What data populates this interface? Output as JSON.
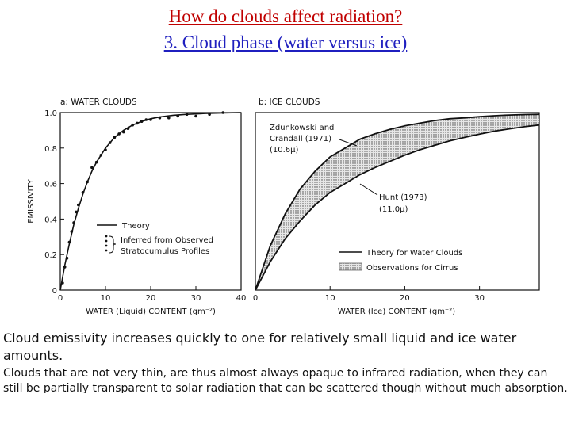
{
  "slide": {
    "title_line1": "How do clouds affect radiation?",
    "title_line2": "3. Cloud phase (water versus ice)",
    "summary": "Cloud emissivity increases quickly to one for relatively small liquid and ice water amounts.",
    "detail": "Clouds that are not very thin, are thus almost always opaque to infrared radiation, when they can still be partially transparent to solar radiation that can be scattered though without much absorption."
  },
  "colors": {
    "title_line1": "#c00000",
    "title_line2": "#1f1fbf",
    "ink": "#111111",
    "shade": "#9a9a9a"
  },
  "chart_data": [
    {
      "type": "line",
      "title": "a: WATER CLOUDS",
      "xlabel": "WATER (Liquid) CONTENT (gm⁻²)",
      "ylabel": "EMISSIVITY",
      "xlim": [
        0,
        40
      ],
      "ylim": [
        0,
        1.0
      ],
      "xticks": [
        "0",
        "10",
        "20",
        "30",
        "40"
      ],
      "yticks": [
        "0",
        "0.2",
        "0.4",
        "0.6",
        "0.8",
        "1.0"
      ],
      "legend": [
        {
          "style": "line",
          "label": "Theory"
        },
        {
          "style": "dots",
          "label": "Inferred from Observed"
        },
        {
          "style": "none",
          "label": "Stratocumulus Profiles"
        }
      ],
      "series": [
        {
          "style": "line",
          "x": [
            0,
            1,
            2,
            3,
            4,
            5,
            6,
            7,
            8,
            9,
            10,
            12,
            14,
            16,
            18,
            20,
            22,
            25,
            28,
            32,
            36,
            40
          ],
          "y": [
            0,
            0.14,
            0.26,
            0.37,
            0.46,
            0.54,
            0.61,
            0.67,
            0.72,
            0.76,
            0.8,
            0.86,
            0.9,
            0.93,
            0.95,
            0.965,
            0.975,
            0.985,
            0.99,
            0.995,
            0.998,
            1.0
          ]
        },
        {
          "style": "dots",
          "x": [
            0.5,
            1,
            1.5,
            2,
            2.5,
            3,
            3.5,
            4,
            5,
            6,
            7,
            8,
            9,
            10,
            11,
            12,
            13,
            14,
            15,
            16,
            17,
            18,
            19,
            20,
            22,
            24,
            26,
            28,
            30,
            33,
            36
          ],
          "y": [
            0.04,
            0.13,
            0.18,
            0.27,
            0.33,
            0.38,
            0.44,
            0.48,
            0.55,
            0.61,
            0.69,
            0.72,
            0.76,
            0.79,
            0.83,
            0.86,
            0.88,
            0.89,
            0.91,
            0.93,
            0.94,
            0.95,
            0.96,
            0.96,
            0.97,
            0.97,
            0.98,
            0.99,
            0.98,
            0.99,
            1.0
          ]
        }
      ]
    },
    {
      "type": "area",
      "title": "b: ICE CLOUDS",
      "xlabel": "WATER (Ice) CONTENT (gm⁻²)",
      "xlim": [
        0,
        38
      ],
      "ylim": [
        0,
        1.0
      ],
      "xticks": [
        "0",
        "10",
        "20",
        "30"
      ],
      "legend": [
        {
          "style": "line",
          "label": "Theory for Water Clouds"
        },
        {
          "style": "shaded",
          "label": "Observations for Cirrus"
        }
      ],
      "annotations": [
        {
          "label_lines": [
            "Zdunkowski and",
            "Crandall (1971)",
            "(10.6μ)"
          ],
          "x": 13,
          "y": 0.88
        },
        {
          "label_lines": [
            "Hunt (1973)",
            "(11.0μ)"
          ],
          "x": 12,
          "y": 0.72
        }
      ],
      "series": [
        {
          "name": "Zdunkowski and Crandall (1971)",
          "style": "line",
          "x": [
            0,
            2,
            4,
            6,
            8,
            10,
            12,
            14,
            16,
            18,
            20,
            22,
            24,
            26,
            28,
            30,
            32,
            34,
            36,
            38
          ],
          "y": [
            0,
            0.25,
            0.43,
            0.57,
            0.67,
            0.75,
            0.8,
            0.85,
            0.88,
            0.905,
            0.925,
            0.94,
            0.955,
            0.965,
            0.97,
            0.977,
            0.982,
            0.986,
            0.989,
            0.99
          ]
        },
        {
          "name": "Hunt (1973)",
          "style": "line",
          "x": [
            0,
            2,
            4,
            6,
            8,
            10,
            12,
            14,
            16,
            18,
            20,
            22,
            24,
            26,
            28,
            30,
            32,
            34,
            36,
            38
          ],
          "y": [
            0,
            0.16,
            0.29,
            0.39,
            0.48,
            0.55,
            0.6,
            0.65,
            0.69,
            0.725,
            0.76,
            0.79,
            0.815,
            0.84,
            0.86,
            0.878,
            0.895,
            0.908,
            0.92,
            0.93
          ]
        }
      ]
    }
  ]
}
